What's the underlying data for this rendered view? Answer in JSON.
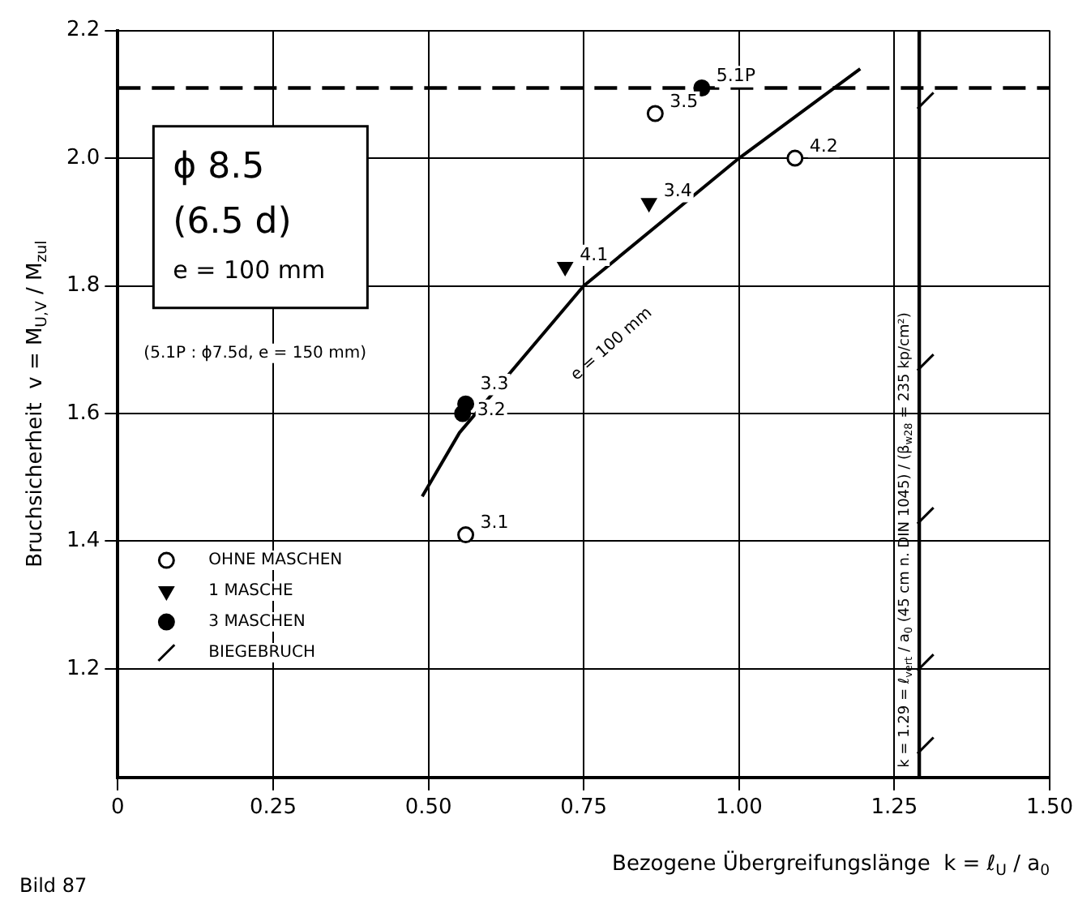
{
  "chart_data": {
    "type": "scatter",
    "xlabel": "Bezogene Übergreifungslänge  k = ℓ$_{U}$ / a$_{0}$",
    "ylabel": "Bruchsicherheit  v = M$_{U,V}$ / M$_{zul}$",
    "xlim": [
      0,
      1.5
    ],
    "ylim": [
      1.03,
      2.2
    ],
    "xticks": [
      0,
      {
        "value": 0.25,
        "label": "0.25"
      },
      {
        "value": 0.5,
        "label": "0.50"
      },
      {
        "value": 0.75,
        "label": "0.75"
      },
      {
        "value": 1,
        "label": "1.00"
      },
      {
        "value": 1.25,
        "label": "1.25"
      },
      {
        "value": 1.5,
        "label": "1.50"
      }
    ],
    "yticks": [
      1.2,
      1.4,
      1.6,
      1.8,
      {
        "value": 2,
        "label": "2.0"
      },
      2.2
    ],
    "grid": true,
    "legend": "left",
    "series": [
      {
        "name": "OHNE MASCHEN",
        "color": "#000000",
        "marker": "circle",
        "x": [
          0.865,
          1.09,
          0.56
        ],
        "values": [
          2.07,
          2.0,
          1.41
        ]
      },
      {
        "name": "1 MASCHE",
        "color": "#000000",
        "marker": "triangle",
        "x": [
          0.855,
          0.72
        ],
        "values": [
          1.93,
          1.83
        ]
      },
      {
        "name": "3 MASCHEN",
        "color": "#000000",
        "marker": "circle",
        "x": [
          0.94,
          0.56,
          0.555
        ],
        "values": [
          2.11,
          1.615,
          1.6
        ]
      },
      {
        "name": "BIEGEBRUCH",
        "color": "#000000",
        "x": [
          1.3,
          1.3,
          1.3,
          1.3,
          1.3
        ],
        "values": [
          2.09,
          1.68,
          1.44,
          1.21,
          1.08
        ]
      },
      {
        "type": "line",
        "color": "#000000",
        "line_style": "solid",
        "x": [
          0.49,
          0.55,
          0.75,
          1.0,
          1.195
        ],
        "values": [
          1.47,
          1.57,
          1.8,
          2.0,
          2.14
        ]
      }
    ],
    "ref_lines": [
      {
        "axis": "y",
        "value": 2.11,
        "line_style": "dashed"
      },
      {
        "axis": "x",
        "value": 1.29,
        "label": "k = 1.29 = ℓ$_{vert}$ / a$_{0}$ (45 cm n. DIN 1045) / (β$_{w28}$ = 235 kp/cm²)",
        "line_style": "solid"
      }
    ],
    "annotations": [
      "ϕ 8.5",
      "(6.5 d)",
      "e = 100 mm",
      "(5.1P : ϕ7.5d, e = 150 mm)",
      "Bild 87",
      "e = 100 mm",
      {
        "text": "3.5",
        "x": 0.865,
        "y": 2.07
      },
      {
        "text": "4.2",
        "x": 1.09,
        "y": 2.0
      },
      {
        "text": "3.1",
        "x": 0.56,
        "y": 1.41
      },
      {
        "text": "3.4",
        "x": 0.855,
        "y": 1.93
      },
      {
        "text": "4.1",
        "x": 0.72,
        "y": 1.83
      },
      {
        "text": "5.1P",
        "x": 0.94,
        "y": 2.11
      },
      {
        "text": "3.3",
        "x": 0.56,
        "y": 1.615
      },
      {
        "text": "3.2",
        "x": 0.555,
        "y": 1.6
      }
    ]
  }
}
